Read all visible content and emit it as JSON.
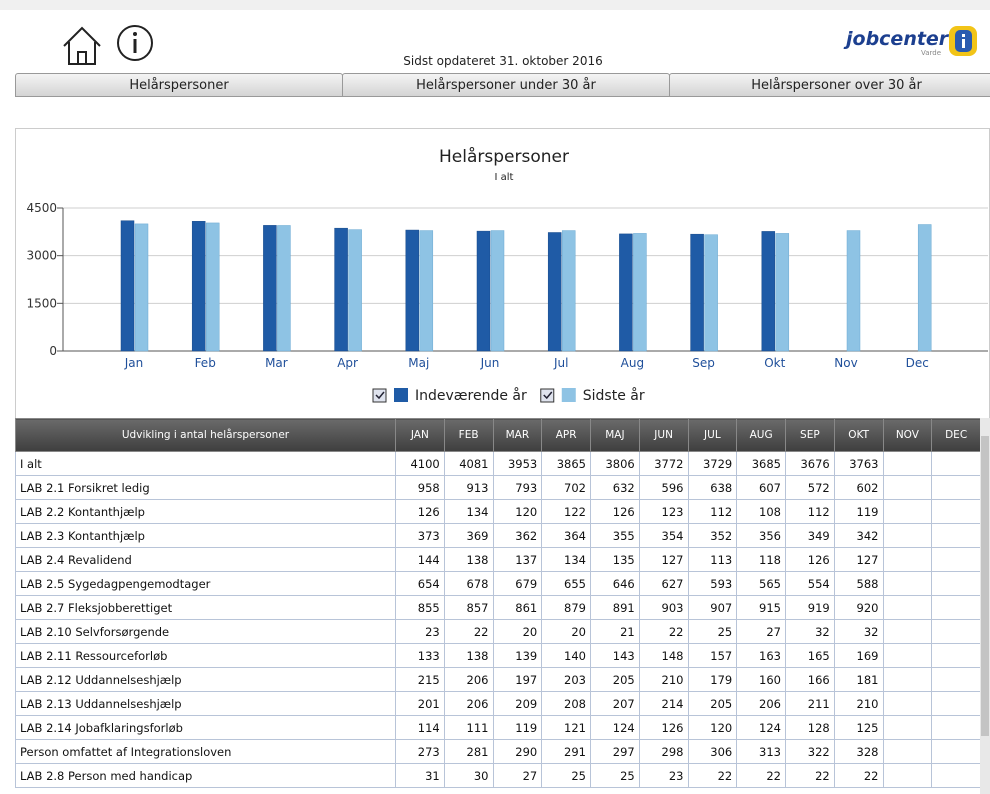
{
  "header": {
    "updated": "Sidst opdateret 31. oktober 2016",
    "logo": "jobcenter",
    "logo_sub": "Varde"
  },
  "tabs": [
    "Helårspersoner",
    "Helårspersoner under 30 år",
    "Helårspersoner over 30 år"
  ],
  "chart_data": {
    "type": "bar",
    "title": "Helårspersoner",
    "subtitle": "I alt",
    "categories": [
      "Jan",
      "Feb",
      "Mar",
      "Apr",
      "Maj",
      "Jun",
      "Jul",
      "Aug",
      "Sep",
      "Okt",
      "Nov",
      "Dec"
    ],
    "series": [
      {
        "name": "Indeværende år",
        "color": "#1f5ba6",
        "values": [
          4100,
          4081,
          3953,
          3865,
          3806,
          3772,
          3729,
          3685,
          3676,
          3763,
          null,
          null
        ]
      },
      {
        "name": "Sidste år",
        "color": "#8ec3e4",
        "values": [
          4000,
          4030,
          3950,
          3820,
          3790,
          3790,
          3790,
          3700,
          3660,
          3700,
          3790,
          3980
        ]
      }
    ],
    "ylim": [
      0,
      4500
    ],
    "yticks": [
      0,
      1500,
      3000,
      4500
    ],
    "grid": true,
    "legend": "bottom"
  },
  "table": {
    "header": [
      "Udvikling i antal helårspersoner",
      "JAN",
      "FEB",
      "MAR",
      "APR",
      "MAJ",
      "JUN",
      "JUL",
      "AUG",
      "SEP",
      "OKT",
      "NOV",
      "DEC"
    ],
    "rows": [
      [
        "I alt",
        4100,
        4081,
        3953,
        3865,
        3806,
        3772,
        3729,
        3685,
        3676,
        3763,
        null,
        null
      ],
      [
        "LAB 2.1 Forsikret ledig",
        958,
        913,
        793,
        702,
        632,
        596,
        638,
        607,
        572,
        602,
        null,
        null
      ],
      [
        "LAB 2.2 Kontanthjælp",
        126,
        134,
        120,
        122,
        126,
        123,
        112,
        108,
        112,
        119,
        null,
        null
      ],
      [
        "LAB 2.3 Kontanthjælp",
        373,
        369,
        362,
        364,
        355,
        354,
        352,
        356,
        349,
        342,
        null,
        null
      ],
      [
        "LAB 2.4 Revalidend",
        144,
        138,
        137,
        134,
        135,
        127,
        113,
        118,
        126,
        127,
        null,
        null
      ],
      [
        "LAB 2.5 Sygedagpengemodtager",
        654,
        678,
        679,
        655,
        646,
        627,
        593,
        565,
        554,
        588,
        null,
        null
      ],
      [
        "LAB 2.7 Fleksjobberettiget",
        855,
        857,
        861,
        879,
        891,
        903,
        907,
        915,
        919,
        920,
        null,
        null
      ],
      [
        "LAB 2.10 Selvforsørgende",
        23,
        22,
        20,
        20,
        21,
        22,
        25,
        27,
        32,
        32,
        null,
        null
      ],
      [
        "LAB 2.11 Ressourceforløb",
        133,
        138,
        139,
        140,
        143,
        148,
        157,
        163,
        165,
        169,
        null,
        null
      ],
      [
        "LAB 2.12 Uddannelseshjælp",
        215,
        206,
        197,
        203,
        205,
        210,
        179,
        160,
        166,
        181,
        null,
        null
      ],
      [
        "LAB 2.13 Uddannelseshjælp",
        201,
        206,
        209,
        208,
        207,
        214,
        205,
        206,
        211,
        210,
        null,
        null
      ],
      [
        "LAB 2.14 Jobafklaringsforløb",
        114,
        111,
        119,
        121,
        124,
        126,
        120,
        124,
        128,
        125,
        null,
        null
      ],
      [
        "Person omfattet af Integrationsloven",
        273,
        281,
        290,
        291,
        297,
        298,
        306,
        313,
        322,
        328,
        null,
        null
      ],
      [
        "LAB 2.8 Person med handicap",
        31,
        30,
        27,
        25,
        25,
        23,
        22,
        22,
        22,
        22,
        null,
        null
      ]
    ]
  }
}
